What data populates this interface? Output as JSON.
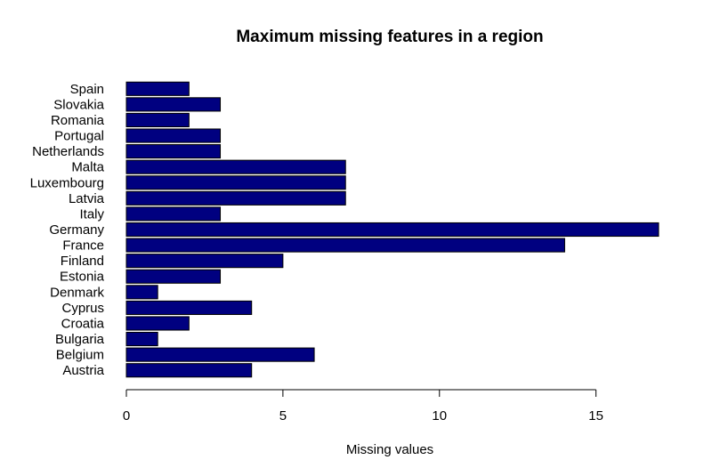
{
  "chart_data": {
    "type": "bar",
    "orientation": "horizontal",
    "title": "Maximum missing features in a region",
    "xlabel": "Missing values",
    "ylabel": "",
    "categories": [
      "Austria",
      "Belgium",
      "Bulgaria",
      "Croatia",
      "Cyprus",
      "Denmark",
      "Estonia",
      "Finland",
      "France",
      "Germany",
      "Italy",
      "Latvia",
      "Luxembourg",
      "Malta",
      "Netherlands",
      "Portugal",
      "Romania",
      "Slovakia",
      "Spain"
    ],
    "values": [
      4,
      6,
      1,
      2,
      4,
      1,
      3,
      5,
      14,
      17,
      3,
      7,
      7,
      7,
      3,
      3,
      2,
      3,
      2
    ],
    "xlim": [
      0,
      17
    ],
    "xticks": [
      0,
      5,
      10,
      15
    ],
    "grid": false,
    "bar_color": "#000080"
  }
}
